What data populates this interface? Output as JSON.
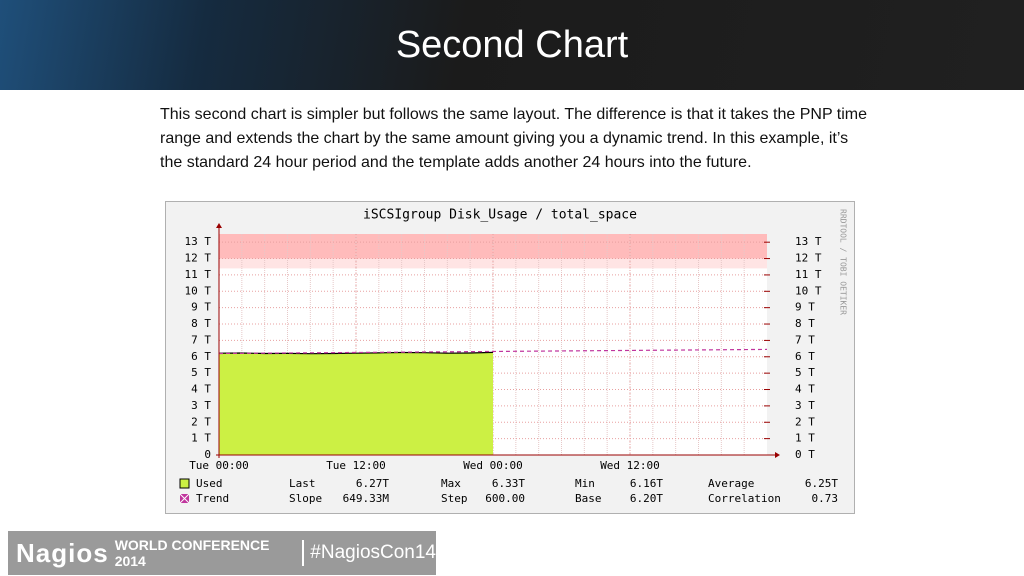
{
  "slide": {
    "title": "Second Chart",
    "paragraph": "This second chart is simpler but follows the same layout. The difference is that it takes the PNP time range and extends the chart by the same amount giving you a dynamic trend. In this example, it’s the standard 24 hour period and the template adds another 24 hours into the future.",
    "footer": {
      "brand": "Nagios",
      "event": "WORLD CONFERENCE 2014",
      "hashtag": "#NagiosCon14"
    }
  },
  "chart_data": {
    "type": "line",
    "title": "iSCSIgroup Disk_Usage / total_space",
    "side_label": "RRDTOOL / TOBI OETIKER",
    "xlim": [
      0,
      48
    ],
    "xticks": [
      {
        "value": 0,
        "label": "Tue 00:00"
      },
      {
        "value": 12,
        "label": "Tue 12:00"
      },
      {
        "value": 24,
        "label": "Wed 00:00"
      },
      {
        "value": 36,
        "label": "Wed 12:00"
      }
    ],
    "ylim": [
      0,
      13.5
    ],
    "yticks": [
      0,
      {
        "value": 1,
        "label": "1 T"
      },
      {
        "value": 2,
        "label": "2 T"
      },
      {
        "value": 3,
        "label": "3 T"
      },
      {
        "value": 4,
        "label": "4 T"
      },
      {
        "value": 5,
        "label": "5 T"
      },
      {
        "value": 6,
        "label": "6 T"
      },
      {
        "value": 7,
        "label": "7 T"
      },
      {
        "value": 8,
        "label": "8 T"
      },
      {
        "value": 9,
        "label": "9 T"
      },
      {
        "value": 10,
        "label": "10 T"
      },
      {
        "value": 11,
        "label": "11 T"
      },
      {
        "value": 12,
        "label": "12 T"
      },
      {
        "value": 13,
        "label": "13 T"
      }
    ],
    "y2lim": [
      0,
      13.5
    ],
    "y2ticks": [
      {
        "value": 0,
        "label": "0 T"
      },
      {
        "value": 1,
        "label": "1 T"
      },
      {
        "value": 2,
        "label": "2 T"
      },
      {
        "value": 3,
        "label": "3 T"
      },
      {
        "value": 4,
        "label": "4 T"
      },
      {
        "value": 5,
        "label": "5 T"
      },
      {
        "value": 6,
        "label": "6 T"
      },
      {
        "value": 7,
        "label": "7 T"
      },
      {
        "value": 8,
        "label": "8 T"
      },
      {
        "value": 9,
        "label": "9 T"
      },
      {
        "value": 10,
        "label": "10 T"
      },
      {
        "value": 11,
        "label": "11 T"
      },
      {
        "value": 12,
        "label": "12 T"
      },
      {
        "value": 13,
        "label": "13 T"
      }
    ],
    "grid": true,
    "bands": [
      {
        "from": 12,
        "to": 13.5,
        "color": "#ffbbbb"
      },
      {
        "from": 11.4,
        "to": 12,
        "color": "#ffe4e4"
      }
    ],
    "series": [
      {
        "name": "Used",
        "color": "#ccf044",
        "area": true,
        "x": [
          0,
          2,
          4,
          6,
          8,
          10,
          12,
          14,
          16,
          18,
          20,
          22,
          24
        ],
        "values": [
          6.22,
          6.23,
          6.2,
          6.21,
          6.19,
          6.2,
          6.22,
          6.24,
          6.26,
          6.25,
          6.22,
          6.23,
          6.27
        ],
        "stats": [
          {
            "label": "Last",
            "value": "6.27T"
          },
          {
            "label": "Max",
            "value": "6.33T"
          },
          {
            "label": "Min",
            "value": "6.16T"
          },
          {
            "label": "Average",
            "value": "6.25T"
          }
        ]
      },
      {
        "name": "Trend",
        "color": "#c0359d",
        "dashed": true,
        "x": [
          0,
          48
        ],
        "values": [
          6.2,
          6.45
        ],
        "stats": [
          {
            "label": "Slope",
            "value": "649.33M"
          },
          {
            "label": "Step",
            "value": "600.00"
          },
          {
            "label": "Base",
            "value": "6.20T"
          },
          {
            "label": "Correlation",
            "value": "0.73"
          }
        ]
      }
    ]
  }
}
